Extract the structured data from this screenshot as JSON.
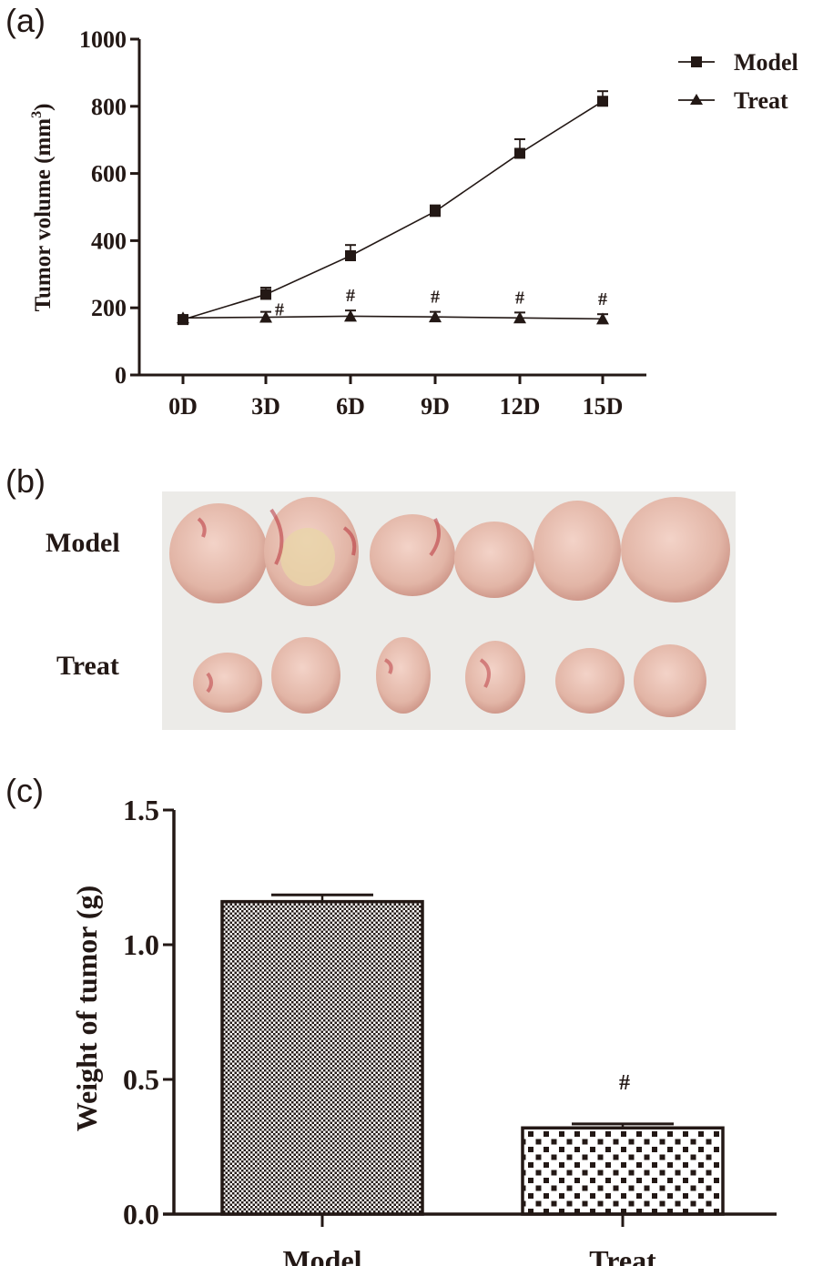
{
  "panels": {
    "a": "(a)",
    "b": "(b)",
    "c": "(c)"
  },
  "chart_data": [
    {
      "type": "line",
      "ylabel": "Tumor volume (mm",
      "ylabel_sup": "3",
      "ylabel_close": ")",
      "ylim": [
        0,
        1000
      ],
      "yticks": [
        "0",
        "200",
        "400",
        "600",
        "800",
        "1000"
      ],
      "ytick_values": [
        0,
        200,
        400,
        600,
        800,
        1000
      ],
      "categories": [
        "0D",
        "3D",
        "6D",
        "9D",
        "12D",
        "15D"
      ],
      "legend_position": "top-right",
      "series": [
        {
          "name": "Model",
          "marker": "square",
          "values": [
            165,
            240,
            355,
            487,
            660,
            815
          ],
          "errors": [
            10,
            20,
            32,
            18,
            42,
            30
          ]
        },
        {
          "name": "Treat",
          "marker": "triangle",
          "values": [
            170,
            172,
            175,
            173,
            170,
            167
          ],
          "errors": [
            8,
            16,
            17,
            15,
            16,
            14
          ]
        }
      ],
      "annotations": [
        {
          "text": "#",
          "category": "3D"
        },
        {
          "text": "#",
          "category": "6D"
        },
        {
          "text": "#",
          "category": "9D"
        },
        {
          "text": "#",
          "category": "12D"
        },
        {
          "text": "#",
          "category": "15D"
        }
      ]
    },
    {
      "type": "bar",
      "ylabel": "Weight of tumor (g)",
      "ylim": [
        0,
        1.5
      ],
      "yticks": [
        "0.0",
        "0.5",
        "1.0",
        "1.5"
      ],
      "ytick_values": [
        0,
        0.5,
        1.0,
        1.5
      ],
      "categories": [
        "Model",
        "Treat"
      ],
      "values": [
        1.16,
        0.32
      ],
      "errors": [
        0.025,
        0.015
      ],
      "annotations": [
        {
          "text": "#",
          "category": "Treat"
        }
      ]
    }
  ],
  "photo": {
    "row_labels": [
      "Model",
      "Treat"
    ],
    "colors": {
      "background": "#ecebe8",
      "tissue": "#e2b5a6",
      "blood": "#b8323a"
    }
  }
}
